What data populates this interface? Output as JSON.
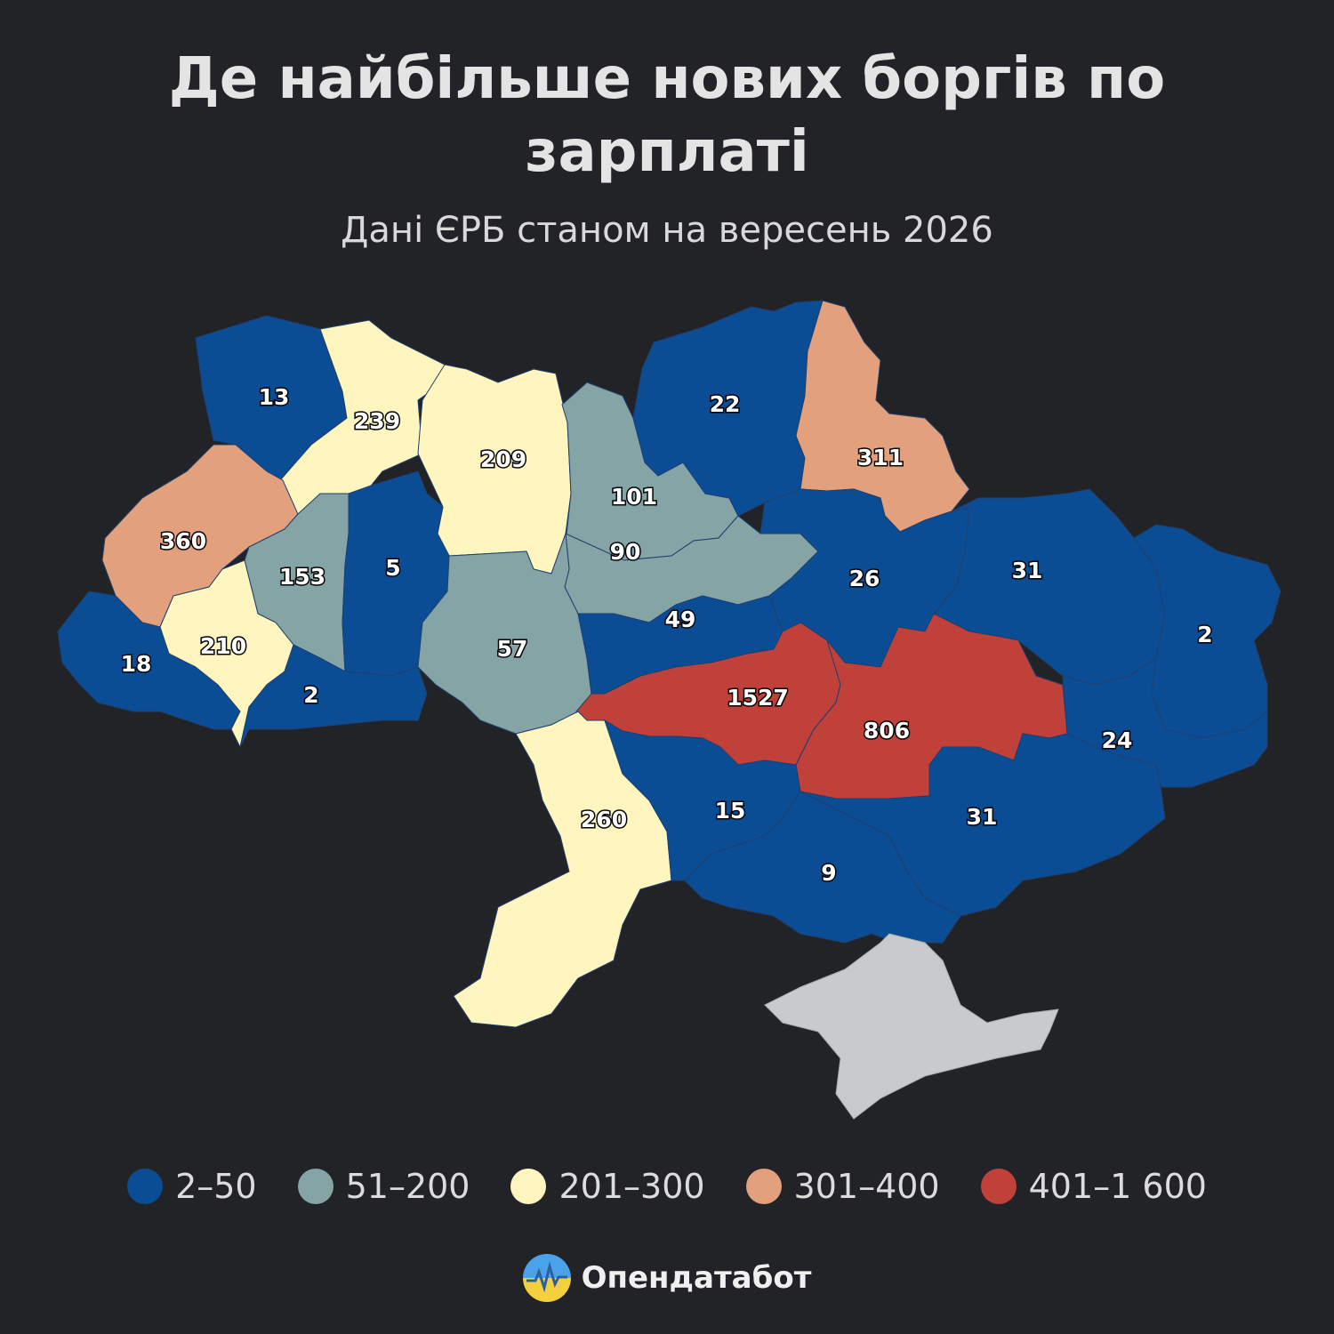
{
  "title": "Де найбільше нових боргів по зарплаті",
  "subtitle": "Дані ЄРБ станом на вересень 2026",
  "colors": {
    "background": "#222326",
    "bin_2_50": "#0a4d94",
    "bin_51_200": "#84a4a6",
    "bin_201_300": "#fef6be",
    "bin_301_400": "#e2a07d",
    "bin_401_1600": "#c0413a",
    "crimea": "#c9cacc"
  },
  "legend": [
    {
      "label": "2–50",
      "color": "#0a4d94"
    },
    {
      "label": "51–200",
      "color": "#84a4a6"
    },
    {
      "label": "201–300",
      "color": "#fef6be"
    },
    {
      "label": "301–400",
      "color": "#e2a07d"
    },
    {
      "label": "401–1 600",
      "color": "#c0413a"
    }
  ],
  "regions": [
    {
      "value": "13",
      "bin": "bin_2_50"
    },
    {
      "value": "239",
      "bin": "bin_201_300"
    },
    {
      "value": "209",
      "bin": "bin_201_300"
    },
    {
      "value": "101",
      "bin": "bin_51_200"
    },
    {
      "value": "22",
      "bin": "bin_2_50"
    },
    {
      "value": "311",
      "bin": "bin_301_400"
    },
    {
      "value": "360",
      "bin": "bin_301_400"
    },
    {
      "value": "153",
      "bin": "bin_51_200"
    },
    {
      "value": "5",
      "bin": "bin_2_50"
    },
    {
      "value": "90",
      "bin": "bin_51_200"
    },
    {
      "value": "26",
      "bin": "bin_2_50"
    },
    {
      "value": "31",
      "bin": "bin_2_50"
    },
    {
      "value": "2",
      "bin": "bin_2_50"
    },
    {
      "value": "18",
      "bin": "bin_2_50"
    },
    {
      "value": "210",
      "bin": "bin_201_300"
    },
    {
      "value": "2",
      "bin": "bin_2_50"
    },
    {
      "value": "57",
      "bin": "bin_51_200"
    },
    {
      "value": "49",
      "bin": "bin_2_50"
    },
    {
      "value": "1527",
      "bin": "bin_401_1600"
    },
    {
      "value": "806",
      "bin": "bin_401_1600"
    },
    {
      "value": "24",
      "bin": "bin_2_50"
    },
    {
      "value": "260",
      "bin": "bin_201_300"
    },
    {
      "value": "15",
      "bin": "bin_2_50"
    },
    {
      "value": "31",
      "bin": "bin_2_50"
    },
    {
      "value": "9",
      "bin": "bin_2_50"
    }
  ],
  "brand": {
    "name": "Опендатабот",
    "icon": "opendatabot-logo-icon"
  }
}
